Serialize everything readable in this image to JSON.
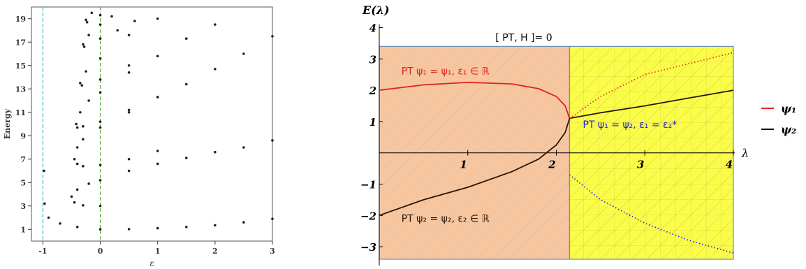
{
  "colors": {
    "cyan_line": "#35b6c8",
    "green_line": "#5aa53c",
    "orange_region": "#f5c6a0",
    "yellow_region": "#fbfb4a",
    "red": "#e0231c",
    "blue": "#1f1fd0",
    "dark": "#2b1608"
  },
  "chart_data": [
    {
      "type": "scatter",
      "title": "",
      "xlabel": "ε",
      "ylabel": "Energy",
      "xlim": [
        -1.2,
        3.0
      ],
      "ylim": [
        0,
        20
      ],
      "x_ticks": [
        "-1",
        "0",
        "1",
        "2",
        "3"
      ],
      "y_ticks": [
        "1",
        "3",
        "5",
        "7",
        "9",
        "11",
        "13",
        "15",
        "17",
        "19"
      ],
      "vertical_lines": [
        {
          "x": -1,
          "color": "cyan",
          "style": "dashed"
        },
        {
          "x": 0,
          "color": "green",
          "style": "dashed"
        }
      ],
      "series": [
        {
          "points": [
            [
              -0.98,
              6.0
            ],
            [
              -0.97,
              3.2
            ],
            [
              -0.9,
              2.0
            ],
            [
              -0.7,
              1.5
            ],
            [
              -0.4,
              1.2
            ],
            [
              0,
              1.0
            ],
            [
              0.5,
              1.02
            ],
            [
              1,
              1.1
            ],
            [
              1.5,
              1.2
            ],
            [
              2,
              1.35
            ],
            [
              2.5,
              1.6
            ],
            [
              3,
              1.9
            ]
          ]
        },
        {
          "points": [
            [
              -0.5,
              3.8
            ],
            [
              -0.4,
              4.4
            ],
            [
              -0.2,
              4.9
            ],
            [
              0,
              5.2
            ],
            [
              0.5,
              6.0
            ],
            [
              1,
              6.6
            ],
            [
              1.5,
              7.1
            ],
            [
              2,
              7.6
            ],
            [
              2.5,
              8.0
            ],
            [
              3,
              8.6
            ],
            [
              -0.45,
              3.3
            ],
            [
              -0.3,
              3.05
            ],
            [
              0,
              3.0
            ]
          ]
        },
        {
          "points": [
            [
              -0.45,
              7.0
            ],
            [
              -0.4,
              8.0
            ],
            [
              -0.3,
              8.7
            ],
            [
              0,
              9.7
            ],
            [
              0.5,
              11.0
            ],
            [
              1,
              12.3
            ],
            [
              1.5,
              13.4
            ],
            [
              2,
              14.7
            ],
            [
              2.5,
              16.0
            ],
            [
              3,
              17.5
            ],
            [
              -0.4,
              6.6
            ],
            [
              -0.3,
              6.4
            ],
            [
              0,
              6.5
            ],
            [
              0.5,
              7.0
            ],
            [
              1,
              7.7
            ]
          ]
        },
        {
          "points": [
            [
              -0.42,
              10.0
            ],
            [
              -0.35,
              11.0
            ],
            [
              -0.2,
              12.0
            ],
            [
              0,
              12.7
            ],
            [
              0.5,
              14.4
            ],
            [
              1,
              15.8
            ],
            [
              1.5,
              17.3
            ],
            [
              2,
              18.5
            ],
            [
              -0.4,
              9.7
            ],
            [
              -0.3,
              9.8
            ],
            [
              0,
              10.2
            ],
            [
              0.5,
              11.2
            ],
            [
              1,
              12.3
            ]
          ]
        },
        {
          "points": [
            [
              -0.35,
              13.5
            ],
            [
              -0.25,
              14.5
            ],
            [
              0,
              15.6
            ],
            [
              0.5,
              17.6
            ],
            [
              1,
              19.0
            ],
            [
              -0.32,
              13.3
            ],
            [
              0,
              13.8
            ],
            [
              0.5,
              15.0
            ]
          ]
        },
        {
          "points": [
            [
              -0.3,
              16.8
            ],
            [
              -0.2,
              17.6
            ],
            [
              0,
              18.5
            ],
            [
              0.2,
              19.2
            ],
            [
              -0.28,
              16.6
            ],
            [
              0,
              17.3
            ],
            [
              0.3,
              18.0
            ],
            [
              0.6,
              18.8
            ]
          ]
        },
        {
          "points": [
            [
              -0.25,
              18.9
            ],
            [
              -0.15,
              19.5
            ],
            [
              -0.23,
              18.7
            ],
            [
              0,
              19.3
            ]
          ]
        }
      ]
    },
    {
      "type": "line",
      "title": "[ PT, H ]= 0",
      "xlabel": "λ",
      "ylabel": "E(λ)",
      "xlim": [
        0,
        4
      ],
      "ylim": [
        -3.6,
        4.1
      ],
      "x_ticks": [
        "1",
        "2",
        "3",
        "4"
      ],
      "y_ticks": [
        "4",
        "3",
        "2",
        "1",
        "−1",
        "−2",
        "−3"
      ],
      "critical_x": 2.15,
      "regions": [
        {
          "from": 0,
          "to": 2.15,
          "color": "orange"
        },
        {
          "from": 2.15,
          "to": 4,
          "color": "yellow"
        }
      ],
      "region_ylim": [
        -3.4,
        3.4
      ],
      "annotations": [
        {
          "text": "PT ψ₁ = ψ₁,  ε₁ ∈ ℝ",
          "color": "red",
          "x": 0.25,
          "y": 2.5
        },
        {
          "text": "PT ψ₂ = ψ₂,  ε₂ ∈ ℝ",
          "color": "dark",
          "x": 0.25,
          "y": -2.2
        },
        {
          "text": "PT ψ₁ = ψ₂,  ε₁ = ε₂*",
          "color": "blue",
          "x": 2.3,
          "y": 0.8
        }
      ],
      "series": [
        {
          "name": "ψ₁",
          "color": "red",
          "points": [
            [
              0,
              2.0
            ],
            [
              0.5,
              2.17
            ],
            [
              1,
              2.25
            ],
            [
              1.5,
              2.2
            ],
            [
              1.8,
              2.05
            ],
            [
              2.0,
              1.8
            ],
            [
              2.1,
              1.5
            ],
            [
              2.15,
              1.1
            ]
          ]
        },
        {
          "name": "ψ₂",
          "color": "dark",
          "points": [
            [
              0,
              -2.0
            ],
            [
              0.5,
              -1.5
            ],
            [
              1,
              -1.1
            ],
            [
              1.5,
              -0.6
            ],
            [
              1.8,
              -0.2
            ],
            [
              2.0,
              0.25
            ],
            [
              2.1,
              0.65
            ],
            [
              2.15,
              1.1
            ],
            [
              2.5,
              1.28
            ],
            [
              3,
              1.5
            ],
            [
              3.5,
              1.75
            ],
            [
              4,
              2.0
            ]
          ]
        },
        {
          "name": "ψ₁ dotted",
          "color": "red",
          "style": "dotted",
          "points": [
            [
              2.15,
              1.1
            ],
            [
              2.5,
              1.8
            ],
            [
              3,
              2.5
            ],
            [
              3.5,
              2.85
            ],
            [
              4,
              3.2
            ]
          ]
        },
        {
          "name": "ψ₂ dotted",
          "color": "blue",
          "style": "dotted",
          "points": [
            [
              2.15,
              -0.7
            ],
            [
              2.5,
              -1.5
            ],
            [
              3,
              -2.25
            ],
            [
              3.5,
              -2.8
            ],
            [
              4,
              -3.2
            ]
          ]
        }
      ]
    }
  ],
  "legend": [
    {
      "label": "ψ₁",
      "color": "#e0231c"
    },
    {
      "label": "ψ₂",
      "color": "#000000"
    }
  ]
}
